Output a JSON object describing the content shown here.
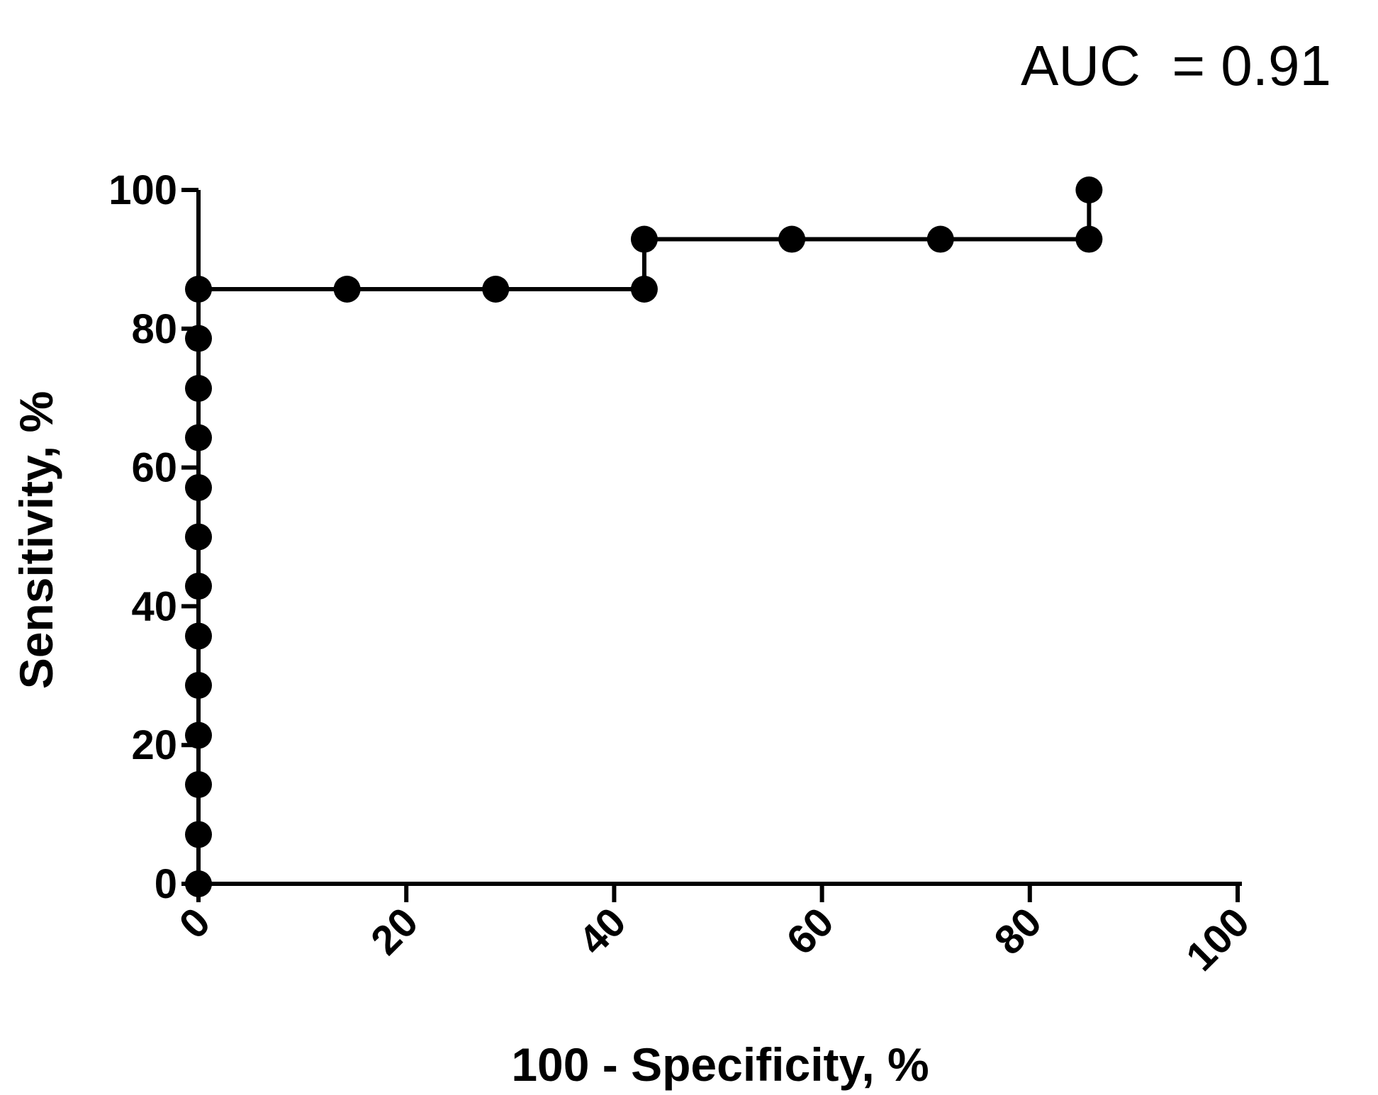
{
  "chart_data": {
    "type": "line",
    "title": "",
    "xlabel": "100 - Specificity, %",
    "ylabel": "Sensitivity, %",
    "xlim": [
      0,
      100
    ],
    "ylim": [
      0,
      100
    ],
    "xticks": [
      "0",
      "20",
      "40",
      "60",
      "80",
      "100"
    ],
    "yticks": [
      "0",
      "20",
      "40",
      "60",
      "80",
      "100"
    ],
    "annotation": "AUC  = 0.91",
    "line_style": "step",
    "marker": "filled-circle",
    "color": "#000000",
    "grid": false,
    "series": [
      {
        "x": [
          0,
          0,
          0,
          0,
          0,
          0,
          0,
          0,
          0,
          0,
          0,
          0,
          0,
          14.3,
          28.6,
          42.9,
          42.9,
          57.1,
          71.4,
          85.7,
          85.7
        ],
        "y": [
          0,
          7.1,
          14.3,
          21.4,
          28.6,
          35.7,
          42.9,
          50.0,
          57.1,
          64.3,
          71.4,
          78.6,
          85.7,
          85.7,
          85.7,
          85.7,
          92.9,
          92.9,
          92.9,
          92.9,
          100
        ]
      }
    ]
  }
}
